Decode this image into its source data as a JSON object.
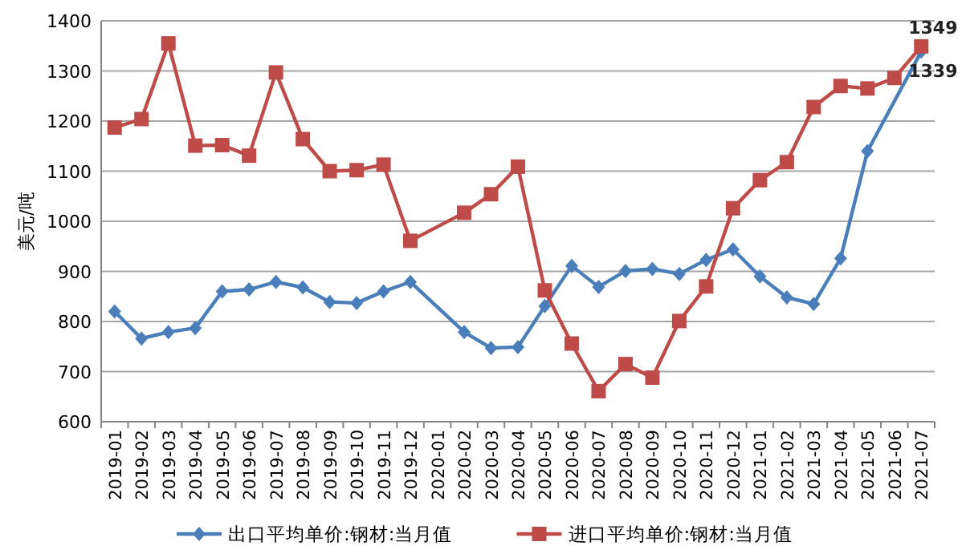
{
  "chart_data": {
    "type": "line",
    "ylabel": "美元/吨",
    "categories": [
      "2019-01",
      "2019-02",
      "2019-03",
      "2019-04",
      "2019-05",
      "2019-06",
      "2019-07",
      "2019-08",
      "2019-09",
      "2019-10",
      "2019-11",
      "2019-12",
      "2020-01",
      "2020-02",
      "2020-03",
      "2020-04",
      "2020-05",
      "2020-06",
      "2020-07",
      "2020-08",
      "2020-09",
      "2020-10",
      "2020-11",
      "2020-12",
      "2021-01",
      "2021-02",
      "2021-03",
      "2021-04",
      "2021-05",
      "2021-06",
      "2021-07"
    ],
    "series": [
      {
        "name": "出口平均单价:钢材:当月值",
        "color": "#4a7ebb",
        "marker": "diamond",
        "values": [
          820,
          766,
          779,
          787,
          860,
          864,
          879,
          868,
          839,
          837,
          860,
          879,
          null,
          779,
          747,
          749,
          831,
          911,
          869,
          901,
          905,
          895,
          923,
          944,
          890,
          848,
          835,
          926,
          1140,
          null,
          1339
        ],
        "value_labels": [
          null,
          null,
          null,
          null,
          null,
          null,
          null,
          null,
          null,
          null,
          null,
          null,
          null,
          null,
          null,
          null,
          null,
          null,
          null,
          null,
          null,
          null,
          null,
          null,
          null,
          null,
          null,
          null,
          null,
          null,
          "1339"
        ]
      },
      {
        "name": "进口平均单价:钢材:当月值",
        "color": "#be4b48",
        "marker": "square",
        "values": [
          1187,
          1204,
          1355,
          1151,
          1152,
          1131,
          1297,
          1164,
          1100,
          1102,
          1113,
          961,
          null,
          1017,
          1054,
          1109,
          862,
          756,
          661,
          715,
          688,
          801,
          870,
          1026,
          1082,
          1118,
          1228,
          1270,
          1265,
          1286,
          1349
        ],
        "value_labels": [
          null,
          null,
          null,
          null,
          null,
          null,
          null,
          null,
          null,
          null,
          null,
          null,
          null,
          null,
          null,
          null,
          null,
          null,
          null,
          null,
          null,
          null,
          null,
          null,
          null,
          null,
          null,
          null,
          null,
          null,
          "1349"
        ]
      }
    ],
    "ylim": [
      600,
      1400
    ],
    "yticks": [
      600,
      700,
      800,
      900,
      1000,
      1100,
      1200,
      1300,
      1400
    ],
    "grid": "y",
    "legend": "bottom"
  }
}
